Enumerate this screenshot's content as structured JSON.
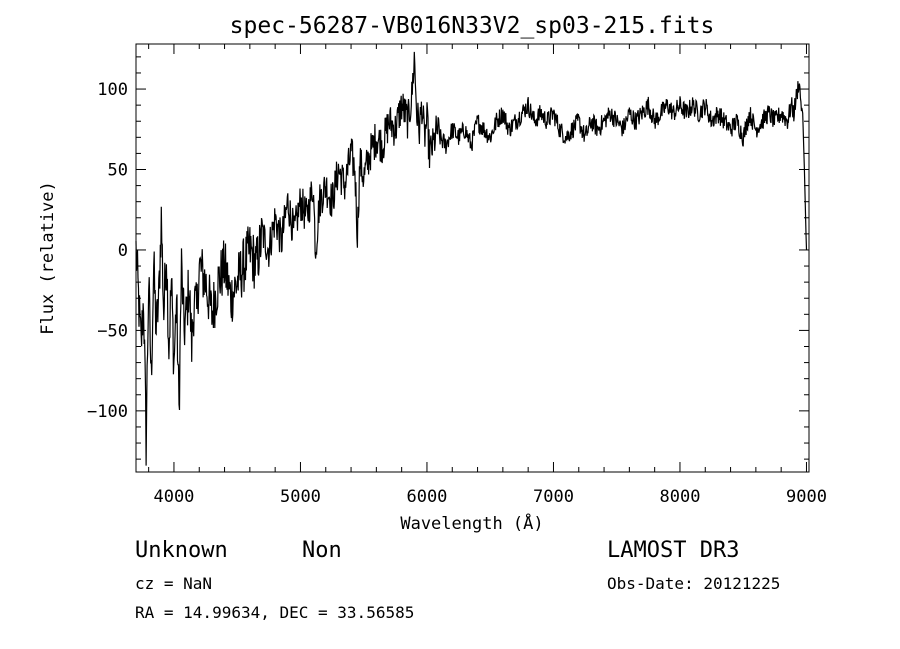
{
  "chart_data": {
    "type": "line",
    "title": "spec-56287-VB016N33V2_sp03-215.fits",
    "xlabel": "Wavelength (Å)",
    "ylabel": "Flux (relative)",
    "xlim": [
      3700,
      9020
    ],
    "ylim": [
      -138,
      128
    ],
    "x_ticks": [
      4000,
      5000,
      6000,
      7000,
      8000,
      9000
    ],
    "y_ticks": [
      -100,
      -50,
      0,
      50,
      100
    ],
    "grid": false,
    "legend": "none",
    "line_color": "#000000",
    "series": [
      {
        "x": [
          3700,
          3740,
          3760,
          3780,
          3800,
          3820,
          3840,
          3860,
          3880,
          3900,
          3920,
          3940,
          3960,
          3980,
          4000,
          4020,
          4040,
          4060,
          4080,
          4100,
          4120,
          4140,
          4160,
          4180,
          4200,
          4250,
          4300,
          4350,
          4400,
          4450,
          4500,
          4550,
          4600,
          4650,
          4700,
          4750,
          4800,
          4850,
          4900,
          4950,
          5000,
          5050,
          5100,
          5120,
          5150,
          5200,
          5250,
          5300,
          5350,
          5400,
          5430,
          5450,
          5470,
          5500,
          5550,
          5600,
          5650,
          5700,
          5750,
          5800,
          5850,
          5880,
          5900,
          5920,
          5940,
          5960,
          5980,
          6000,
          6020,
          6050,
          6080,
          6100,
          6150,
          6200,
          6250,
          6300,
          6350,
          6400,
          6450,
          6500,
          6550,
          6600,
          6650,
          6700,
          6750,
          6800,
          6850,
          6900,
          6950,
          7000,
          7050,
          7100,
          7150,
          7200,
          7250,
          7300,
          7350,
          7400,
          7450,
          7500,
          7550,
          7600,
          7650,
          7700,
          7750,
          7800,
          7850,
          7900,
          7950,
          8000,
          8050,
          8100,
          8150,
          8200,
          8250,
          8300,
          8350,
          8400,
          8450,
          8500,
          8550,
          8600,
          8650,
          8700,
          8750,
          8800,
          8850,
          8880,
          8900,
          8920,
          8940,
          8960,
          8970,
          8980,
          8990,
          9000
        ],
        "y": [
          0,
          -60,
          -30,
          -120,
          -20,
          -80,
          -10,
          -50,
          -30,
          20,
          -40,
          0,
          -60,
          -20,
          -70,
          -30,
          -100,
          -10,
          -50,
          -40,
          -20,
          -60,
          -30,
          -40,
          -10,
          -20,
          -40,
          -20,
          -10,
          -30,
          -20,
          -10,
          0,
          -10,
          10,
          0,
          20,
          5,
          30,
          10,
          30,
          20,
          40,
          0,
          30,
          40,
          30,
          50,
          40,
          60,
          50,
          10,
          55,
          45,
          60,
          70,
          65,
          80,
          75,
          90,
          80,
          95,
          120,
          85,
          75,
          90,
          70,
          80,
          60,
          65,
          75,
          70,
          65,
          75,
          70,
          75,
          65,
          80,
          75,
          70,
          80,
          85,
          75,
          80,
          85,
          90,
          80,
          85,
          80,
          85,
          75,
          70,
          75,
          80,
          70,
          80,
          75,
          80,
          85,
          80,
          75,
          85,
          80,
          85,
          90,
          80,
          85,
          90,
          85,
          90,
          85,
          90,
          85,
          90,
          80,
          85,
          80,
          75,
          80,
          70,
          85,
          75,
          80,
          85,
          80,
          85,
          80,
          90,
          85,
          95,
          105,
          90,
          85,
          60,
          30,
          0
        ]
      }
    ]
  },
  "annotations": {
    "object_class": "Unknown",
    "subclass": "Non",
    "survey": "LAMOST DR3",
    "cz": "cz = NaN",
    "obs_date": "Obs-Date: 20121225",
    "coords": "RA =  14.99634, DEC =  33.56585"
  }
}
